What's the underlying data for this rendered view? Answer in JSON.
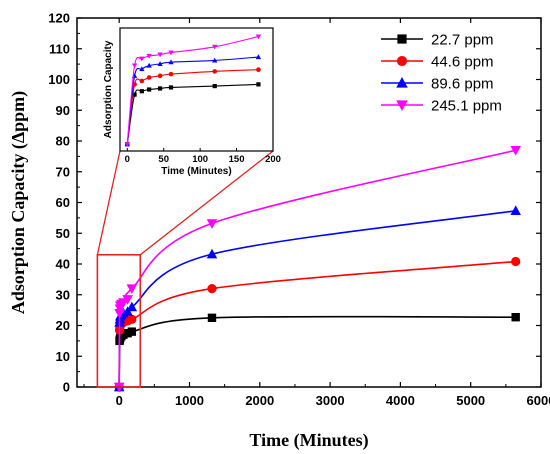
{
  "chart_data": [
    {
      "type": "line",
      "xlabel": "Time (Minutes)",
      "ylabel": "Adsorption Capacity (Δppm)",
      "xlim": [
        -600,
        6000
      ],
      "ylim": [
        0,
        120
      ],
      "xticks": [
        0,
        1000,
        2000,
        3000,
        4000,
        5000,
        6000
      ],
      "yticks": [
        0,
        10,
        20,
        30,
        40,
        50,
        60,
        70,
        80,
        90,
        100,
        110,
        120
      ],
      "legend_position": "top-right",
      "series": [
        {
          "name": "22.7    ppm",
          "color": "#000000",
          "marker": "square",
          "x": [
            0,
            5,
            10,
            15,
            30,
            60,
            120,
            180,
            1320,
            5640
          ],
          "y": [
            0,
            15.0,
            15.5,
            16.0,
            16.5,
            17.0,
            17.5,
            18.0,
            22.5,
            22.7
          ]
        },
        {
          "name": "44.6    ppm",
          "color": "#ff0000",
          "marker": "circle",
          "x": [
            0,
            5,
            10,
            15,
            30,
            60,
            120,
            180,
            1320,
            5640
          ],
          "y": [
            0,
            18.5,
            19.5,
            20.0,
            20.5,
            21.0,
            21.5,
            22.0,
            32.0,
            40.8
          ]
        },
        {
          "name": "89.6    ppm",
          "color": "#0000ff",
          "marker": "triangle-up",
          "x": [
            0,
            5,
            10,
            15,
            30,
            60,
            120,
            180,
            1320,
            5640
          ],
          "y": [
            0,
            21.0,
            22.0,
            23.0,
            23.5,
            24.0,
            24.5,
            26.0,
            43.2,
            57.3
          ]
        },
        {
          "name": "245.1 ppm",
          "color": "#ff00ff",
          "marker": "triangle-down",
          "x": [
            0,
            5,
            10,
            15,
            30,
            60,
            120,
            180,
            1320,
            5640
          ],
          "y": [
            0,
            24.0,
            25.5,
            26.5,
            27.0,
            27.5,
            28.5,
            32.0,
            53.2,
            77.0
          ]
        }
      ]
    },
    {
      "type": "line",
      "xlabel": "Time (Minutes)",
      "ylabel": "Adsorption Capacity",
      "xlim": [
        -10,
        200
      ],
      "xticks": [
        0,
        50,
        100,
        150,
        200
      ],
      "grid": false,
      "series": [
        {
          "color": "#000000",
          "marker": "square",
          "x": [
            0,
            10,
            20,
            30,
            45,
            60,
            120,
            180
          ],
          "y": [
            0,
            14.5,
            15.5,
            16.0,
            16.3,
            16.6,
            17.0,
            17.5
          ]
        },
        {
          "color": "#ff0000",
          "marker": "circle",
          "x": [
            0,
            10,
            20,
            30,
            45,
            60,
            120,
            180
          ],
          "y": [
            0,
            17.5,
            18.5,
            19.5,
            20.0,
            20.5,
            21.3,
            21.8
          ]
        },
        {
          "color": "#0000ff",
          "marker": "triangle-up",
          "x": [
            0,
            10,
            20,
            30,
            45,
            60,
            120,
            180
          ],
          "y": [
            0,
            20.0,
            22.0,
            23.0,
            23.5,
            24.0,
            24.5,
            25.5
          ]
        },
        {
          "color": "#ff00ff",
          "marker": "triangle-down",
          "x": [
            0,
            10,
            20,
            30,
            45,
            60,
            120,
            180
          ],
          "y": [
            0,
            23.0,
            25.0,
            25.8,
            26.2,
            26.8,
            28.5,
            31.5
          ]
        }
      ]
    }
  ]
}
